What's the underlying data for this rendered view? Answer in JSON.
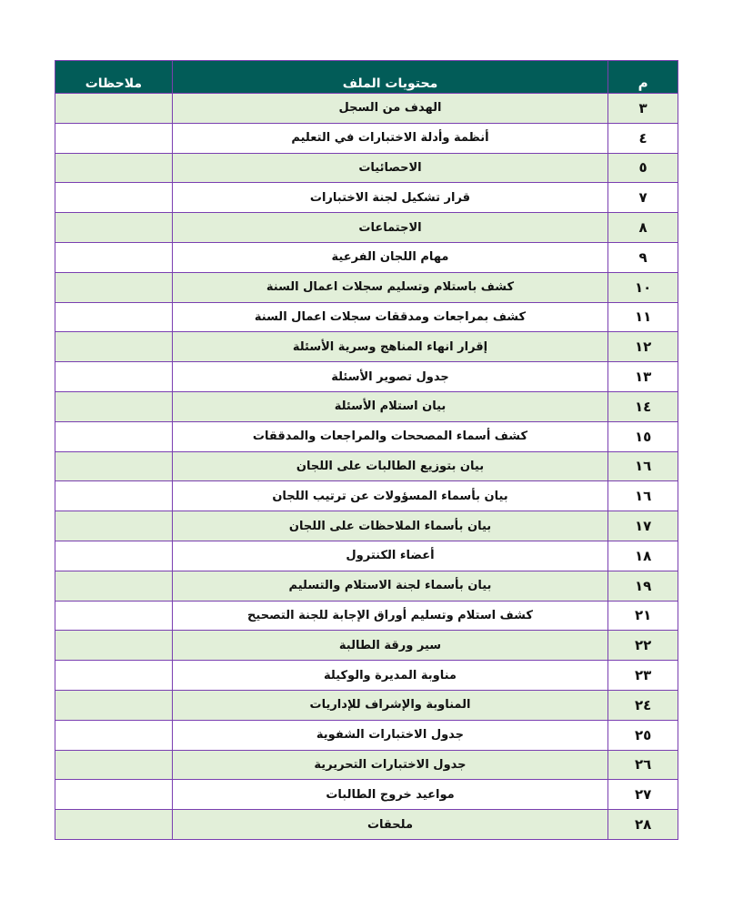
{
  "table": {
    "headers": {
      "number": "م",
      "contents": "محتويات الملف",
      "notes": "ملاحظات"
    },
    "colors": {
      "header_bg": "#025c58",
      "alt_row_bg": "#e2efd9",
      "border": "#7a3fb0"
    },
    "rows": [
      {
        "number": "٣",
        "contents": "الهدف من السجل",
        "notes": ""
      },
      {
        "number": "٤",
        "contents": "أنظمة وأدلة الاختبارات في التعليم",
        "notes": ""
      },
      {
        "number": "٥",
        "contents": "الاحصائيات",
        "notes": ""
      },
      {
        "number": "٧",
        "contents": "قرار تشكيل لجنة الاختبارات",
        "notes": ""
      },
      {
        "number": "٨",
        "contents": "الاجتماعات",
        "notes": ""
      },
      {
        "number": "٩",
        "contents": "مهام اللجان الفرعية",
        "notes": ""
      },
      {
        "number": "١٠",
        "contents": "كشف باستلام وتسليم سجلات اعمال السنة",
        "notes": ""
      },
      {
        "number": "١١",
        "contents": "كشف بمراجعات ومدققات سجلات اعمال السنة",
        "notes": ""
      },
      {
        "number": "١٢",
        "contents": "إقرار انهاء المناهج وسرية الأسئلة",
        "notes": ""
      },
      {
        "number": "١٣",
        "contents": "جدول تصوير الأسئلة",
        "notes": ""
      },
      {
        "number": "١٤",
        "contents": "بيان استلام الأسئلة",
        "notes": ""
      },
      {
        "number": "١٥",
        "contents": "كشف أسماء المصححات والمراجعات والمدققات",
        "notes": ""
      },
      {
        "number": "١٦",
        "contents": "بيان بتوزيع الطالبات على اللجان",
        "notes": ""
      },
      {
        "number": "١٦",
        "contents": "بيان بأسماء المسؤولات عن ترتيب اللجان",
        "notes": ""
      },
      {
        "number": "١٧",
        "contents": "بيان بأسماء الملاحظات على اللجان",
        "notes": ""
      },
      {
        "number": "١٨",
        "contents": "أعضاء الكنترول",
        "notes": ""
      },
      {
        "number": "١٩",
        "contents": "بيان بأسماء لجنة الاستلام والتسليم",
        "notes": ""
      },
      {
        "number": "٢١",
        "contents": "كشف استلام وتسليم أوراق الإجابة للجنة التصحيح",
        "notes": ""
      },
      {
        "number": "٢٢",
        "contents": "سير ورقة الطالبة",
        "notes": ""
      },
      {
        "number": "٢٣",
        "contents": "مناوبة المديرة والوكيلة",
        "notes": ""
      },
      {
        "number": "٢٤",
        "contents": "المناوبة والإشراف للإداريات",
        "notes": ""
      },
      {
        "number": "٢٥",
        "contents": "جدول الاختبارات الشفوية",
        "notes": ""
      },
      {
        "number": "٢٦",
        "contents": "جدول الاختبارات التحريرية",
        "notes": ""
      },
      {
        "number": "٢٧",
        "contents": "مواعيد خروج الطالبات",
        "notes": ""
      },
      {
        "number": "٢٨",
        "contents": "ملحقات",
        "notes": ""
      }
    ]
  }
}
